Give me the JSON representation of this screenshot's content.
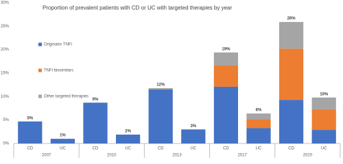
{
  "chart_data": {
    "type": "stacked-bar",
    "title": "Proportion of prevalent patients with CD or UC with targeted therapies by year",
    "categories": [
      "CD",
      "UC",
      "CD",
      "UC",
      "CD",
      "UC",
      "CD",
      "UC",
      "CD",
      "UC"
    ],
    "groups": [
      "2007",
      "2010",
      "2013",
      "2017",
      "2020"
    ],
    "series": [
      {
        "name": "Originator TNFi",
        "color": "#4472c4",
        "values": [
          4.7,
          1.0,
          8.7,
          1.9,
          11.5,
          3.0,
          12.1,
          3.3,
          9.3,
          2.9
        ]
      },
      {
        "name": "TNFi biosimilars",
        "color": "#ed7d31",
        "values": [
          null,
          null,
          null,
          null,
          null,
          null,
          4.5,
          1.8,
          10.9,
          4.4
        ]
      },
      {
        "name": "Other targeted therapies",
        "color": "#a5a5a5",
        "values": [
          null,
          null,
          null,
          null,
          0.3,
          null,
          2.8,
          1.3,
          5.7,
          2.5
        ]
      }
    ],
    "totals": {
      "values": [
        4.7,
        1.0,
        8.7,
        1.9,
        11.8,
        3.0,
        19.4,
        6.4,
        25.9,
        9.8
      ],
      "value_labels": [
        "5%",
        "1%",
        "9%",
        "2%",
        "12%",
        "3%",
        "19%",
        "6%",
        "26%",
        "10%"
      ]
    },
    "ylim": [
      0,
      30
    ],
    "yticks": [
      {
        "value": 0,
        "label": "0%"
      },
      {
        "value": 5,
        "label": "5%"
      },
      {
        "value": 10,
        "label": "10%"
      },
      {
        "value": 15,
        "label": "15%"
      },
      {
        "value": 20,
        "label": "20%"
      },
      {
        "value": 25,
        "label": "25%"
      },
      {
        "value": 30,
        "label": "30%"
      }
    ],
    "grid": false,
    "legend": "left"
  }
}
